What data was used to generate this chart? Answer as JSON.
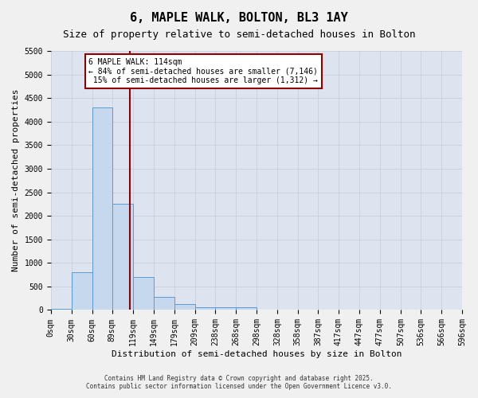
{
  "title": "6, MAPLE WALK, BOLTON, BL3 1AY",
  "subtitle": "Size of property relative to semi-detached houses in Bolton",
  "xlabel": "Distribution of semi-detached houses by size in Bolton",
  "ylabel": "Number of semi-detached properties",
  "bin_labels": [
    "0sqm",
    "30sqm",
    "60sqm",
    "89sqm",
    "119sqm",
    "149sqm",
    "179sqm",
    "209sqm",
    "238sqm",
    "268sqm",
    "298sqm",
    "328sqm",
    "358sqm",
    "387sqm",
    "417sqm",
    "447sqm",
    "477sqm",
    "507sqm",
    "536sqm",
    "566sqm",
    "596sqm"
  ],
  "bin_edges": [
    0,
    30,
    60,
    89,
    119,
    149,
    179,
    209,
    238,
    268,
    298,
    328,
    358,
    387,
    417,
    447,
    477,
    507,
    536,
    566,
    596
  ],
  "bar_heights": [
    30,
    800,
    4300,
    2250,
    700,
    270,
    120,
    65,
    65,
    65,
    0,
    0,
    0,
    0,
    0,
    0,
    0,
    0,
    0,
    0
  ],
  "bar_color": "#c5d8ed",
  "bar_edge_color": "#5b9bd5",
  "property_size": 114,
  "property_label": "6 MAPLE WALK: 114sqm",
  "pct_smaller": 84,
  "pct_larger": 15,
  "n_smaller": 7146,
  "n_larger": 1312,
  "vline_color": "#8b0000",
  "annotation_box_color": "#8b0000",
  "ylim": [
    0,
    5500
  ],
  "yticks": [
    0,
    500,
    1000,
    1500,
    2000,
    2500,
    3000,
    3500,
    4000,
    4500,
    5000,
    5500
  ],
  "grid_color": "#c8d0dc",
  "bg_color": "#dde4ef",
  "fig_bg_color": "#f0f0f0",
  "footer1": "Contains HM Land Registry data © Crown copyright and database right 2025.",
  "footer2": "Contains public sector information licensed under the Open Government Licence v3.0.",
  "title_fontsize": 11,
  "subtitle_fontsize": 9,
  "axis_label_fontsize": 8,
  "tick_fontsize": 7,
  "ann_fontsize": 7
}
